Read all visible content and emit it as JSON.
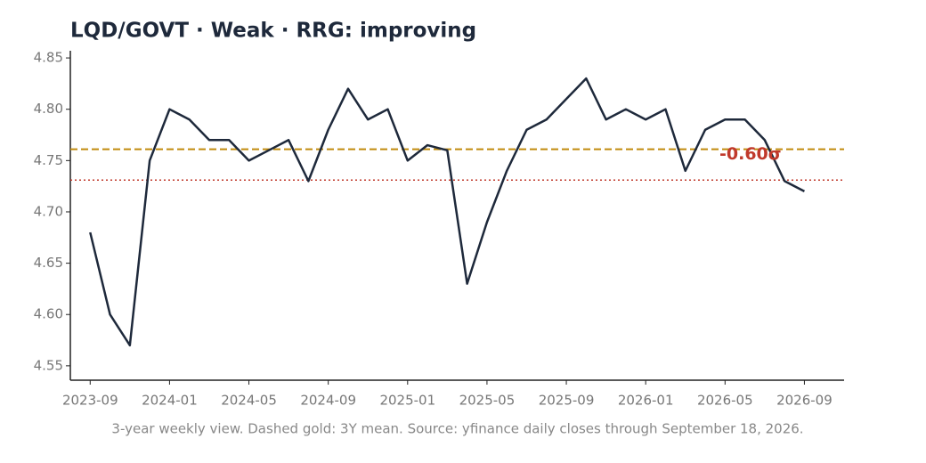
{
  "chart_data": {
    "type": "line",
    "title": "LQD/GOVT  ·  Weak  ·  RRG: improving",
    "footnote": "3-year weekly view. Dashed gold: 3Y mean. Source: yfinance daily closes through September 18, 2026.",
    "annotation": "-0.60σ",
    "x": [
      "2023-09",
      "2023-10",
      "2023-11",
      "2023-12",
      "2024-01",
      "2024-02",
      "2024-03",
      "2024-04",
      "2024-05",
      "2024-06",
      "2024-07",
      "2024-08",
      "2024-09",
      "2024-10",
      "2024-11",
      "2024-12",
      "2025-01",
      "2025-02",
      "2025-03",
      "2025-04",
      "2025-05",
      "2025-06",
      "2025-07",
      "2025-08",
      "2025-09",
      "2025-10",
      "2025-11",
      "2025-12",
      "2026-01",
      "2026-02",
      "2026-03",
      "2026-04",
      "2026-05",
      "2026-06",
      "2026-07",
      "2026-08",
      "2026-09"
    ],
    "series": [
      {
        "name": "LQD/GOVT",
        "color": "#1e293b",
        "values": [
          4.68,
          4.6,
          4.57,
          4.75,
          4.8,
          4.79,
          4.77,
          4.77,
          4.75,
          4.76,
          4.77,
          4.73,
          4.78,
          4.82,
          4.79,
          4.8,
          4.75,
          4.765,
          4.76,
          4.63,
          4.69,
          4.74,
          4.78,
          4.79,
          4.81,
          4.83,
          4.79,
          4.8,
          4.79,
          4.8,
          4.74,
          4.78,
          4.79,
          4.79,
          4.77,
          4.73,
          4.72
        ]
      }
    ],
    "reference_lines": [
      {
        "value": 4.761,
        "color": "#c08a0c",
        "style": "dashed"
      },
      {
        "value": 4.731,
        "color": "#c0392b",
        "style": "dotted"
      }
    ],
    "xlim": [
      "2023-08",
      "2026-11"
    ],
    "xticks": [
      "2023-09",
      "2024-01",
      "2024-05",
      "2024-09",
      "2025-01",
      "2025-05",
      "2025-09",
      "2026-01",
      "2026-05",
      "2026-09"
    ],
    "ylim": [
      4.536,
      4.857
    ],
    "yticks": [
      {
        "value": 4.55,
        "label": "4.55"
      },
      {
        "value": 4.6,
        "label": "4.60"
      },
      {
        "value": 4.65,
        "label": "4.65"
      },
      {
        "value": 4.7,
        "label": "4.70"
      },
      {
        "value": 4.75,
        "label": "4.75"
      },
      {
        "value": 4.8,
        "label": "4.80"
      },
      {
        "value": 4.85,
        "label": "4.85"
      }
    ],
    "annotation_color": "#c0392b"
  }
}
